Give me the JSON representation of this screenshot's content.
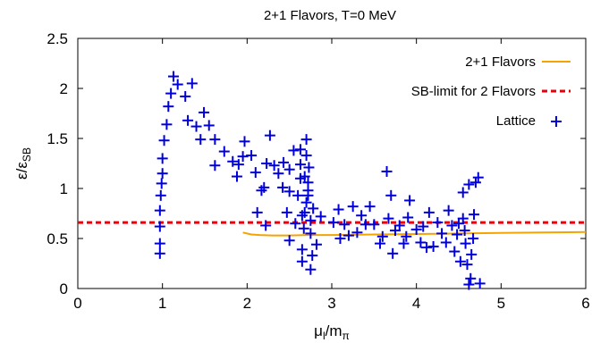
{
  "chart_data": {
    "type": "scatter",
    "title": "2+1 Flavors, T=0 MeV",
    "xlabel": {
      "base": "μ",
      "base_sub": "l",
      "sep": "/m",
      "sep_sub": "π"
    },
    "ylabel": {
      "base": "ε/ε",
      "sub": "SB"
    },
    "xlim": [
      0,
      6
    ],
    "ylim": [
      0,
      2.5
    ],
    "xticks": [
      "0",
      "1",
      "2",
      "3",
      "4",
      "5",
      "6"
    ],
    "yticks": [
      "0",
      "0.5",
      "1",
      "1.5",
      "2",
      "2.5"
    ],
    "grid": false,
    "legend_position": "top-right",
    "colors": {
      "flavors": "#f5a300",
      "sb": "#e8000b",
      "lattice": "#0000dd"
    },
    "series": [
      {
        "name": "2+1 Flavors",
        "kind": "line",
        "x": [
          1.95,
          2.05,
          2.15,
          2.3,
          2.5,
          2.7,
          3.0,
          3.5,
          4.0,
          4.5,
          5.0,
          5.5,
          6.0
        ],
        "y": [
          0.56,
          0.54,
          0.535,
          0.53,
          0.53,
          0.535,
          0.535,
          0.54,
          0.545,
          0.55,
          0.555,
          0.56,
          0.565
        ]
      },
      {
        "name": "SB-limit for 2 Flavors",
        "kind": "dashed",
        "x": [
          0,
          6
        ],
        "y": [
          0.66,
          0.66
        ]
      },
      {
        "name": "Lattice",
        "kind": "points",
        "points": [
          [
            0.97,
            0.35
          ],
          [
            0.97,
            0.45
          ],
          [
            0.97,
            0.62
          ],
          [
            0.97,
            0.78
          ],
          [
            0.98,
            0.93
          ],
          [
            0.99,
            1.05
          ],
          [
            1.0,
            1.15
          ],
          [
            1.0,
            1.3
          ],
          [
            1.02,
            1.48
          ],
          [
            1.05,
            1.64
          ],
          [
            1.07,
            1.82
          ],
          [
            1.1,
            1.95
          ],
          [
            1.13,
            2.12
          ],
          [
            1.18,
            2.04
          ],
          [
            1.27,
            1.92
          ],
          [
            1.3,
            1.68
          ],
          [
            1.35,
            2.05
          ],
          [
            1.4,
            1.62
          ],
          [
            1.45,
            1.49
          ],
          [
            1.49,
            1.76
          ],
          [
            1.55,
            1.63
          ],
          [
            1.62,
            1.23
          ],
          [
            1.62,
            1.49
          ],
          [
            1.73,
            1.37
          ],
          [
            1.83,
            1.27
          ],
          [
            1.88,
            1.12
          ],
          [
            1.9,
            1.24
          ],
          [
            1.95,
            1.32
          ],
          [
            1.97,
            1.47
          ],
          [
            2.05,
            1.33
          ],
          [
            2.1,
            1.16
          ],
          [
            2.12,
            0.76
          ],
          [
            2.17,
            0.98
          ],
          [
            2.2,
            1.01
          ],
          [
            2.22,
            0.63
          ],
          [
            2.23,
            1.25
          ],
          [
            2.27,
            1.53
          ],
          [
            2.32,
            1.23
          ],
          [
            2.37,
            1.15
          ],
          [
            2.42,
            1.01
          ],
          [
            2.43,
            1.26
          ],
          [
            2.47,
            0.76
          ],
          [
            2.5,
            0.97
          ],
          [
            2.5,
            1.19
          ],
          [
            2.5,
            0.48
          ],
          [
            2.55,
            1.38
          ],
          [
            2.57,
            0.65
          ],
          [
            2.6,
            0.93
          ],
          [
            2.63,
            1.1
          ],
          [
            2.63,
            1.24
          ],
          [
            2.63,
            1.39
          ],
          [
            2.65,
            0.73
          ],
          [
            2.65,
            0.27
          ],
          [
            2.65,
            0.39
          ],
          [
            2.67,
            0.6
          ],
          [
            2.68,
            0.76
          ],
          [
            2.68,
            1.12
          ],
          [
            2.7,
            0.86
          ],
          [
            2.7,
            1.33
          ],
          [
            2.7,
            1.49
          ],
          [
            2.72,
            0.93
          ],
          [
            2.72,
            0.98
          ],
          [
            2.72,
            1.06
          ],
          [
            2.73,
            1.21
          ],
          [
            2.75,
            0.55
          ],
          [
            2.75,
            0.68
          ],
          [
            2.75,
            0.19
          ],
          [
            2.77,
            0.33
          ],
          [
            2.78,
            0.8
          ],
          [
            2.82,
            0.44
          ],
          [
            2.87,
            0.72
          ],
          [
            3.02,
            0.66
          ],
          [
            3.08,
            0.79
          ],
          [
            3.1,
            0.5
          ],
          [
            3.15,
            0.64
          ],
          [
            3.2,
            0.53
          ],
          [
            3.25,
            0.82
          ],
          [
            3.3,
            0.56
          ],
          [
            3.35,
            0.73
          ],
          [
            3.4,
            0.64
          ],
          [
            3.45,
            0.82
          ],
          [
            3.5,
            0.64
          ],
          [
            3.57,
            0.45
          ],
          [
            3.6,
            0.52
          ],
          [
            3.65,
            1.17
          ],
          [
            3.67,
            0.7
          ],
          [
            3.7,
            0.93
          ],
          [
            3.72,
            0.35
          ],
          [
            3.75,
            0.58
          ],
          [
            3.8,
            0.63
          ],
          [
            3.85,
            0.45
          ],
          [
            3.88,
            0.52
          ],
          [
            3.9,
            0.71
          ],
          [
            3.92,
            0.88
          ],
          [
            4.0,
            0.59
          ],
          [
            4.05,
            0.46
          ],
          [
            4.08,
            0.62
          ],
          [
            4.12,
            0.41
          ],
          [
            4.15,
            0.76
          ],
          [
            4.2,
            0.42
          ],
          [
            4.25,
            0.66
          ],
          [
            4.3,
            0.55
          ],
          [
            4.35,
            0.46
          ],
          [
            4.38,
            0.78
          ],
          [
            4.42,
            0.63
          ],
          [
            4.45,
            0.37
          ],
          [
            4.48,
            0.54
          ],
          [
            4.5,
            0.65
          ],
          [
            4.52,
            0.27
          ],
          [
            4.55,
            0.7
          ],
          [
            4.55,
            0.96
          ],
          [
            4.57,
            0.58
          ],
          [
            4.58,
            0.45
          ],
          [
            4.6,
            0.24
          ],
          [
            4.62,
            0.04
          ],
          [
            4.62,
            1.04
          ],
          [
            4.64,
            0.1
          ],
          [
            4.65,
            0.34
          ],
          [
            4.67,
            0.5
          ],
          [
            4.68,
            0.74
          ],
          [
            4.7,
            1.06
          ],
          [
            4.73,
            1.11
          ],
          [
            4.75,
            0.05
          ]
        ]
      }
    ]
  }
}
